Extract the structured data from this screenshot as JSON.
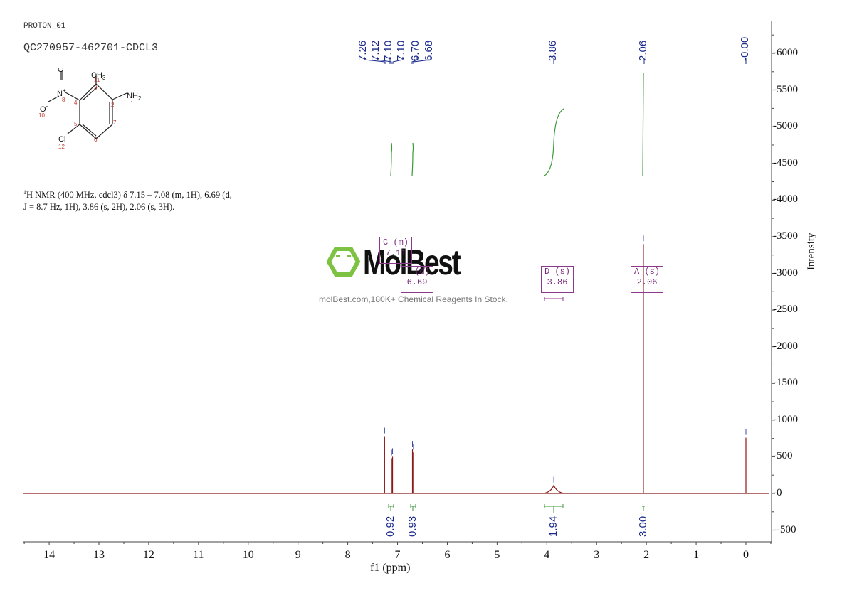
{
  "header": {
    "experiment": "PROTON_01",
    "sample_id": "QC270957-462701-CDCL3"
  },
  "structure": {
    "atoms": [
      {
        "label": "NH2",
        "num": "1"
      },
      {
        "label": "CH3",
        "num": "11"
      },
      {
        "label": "N+",
        "num": "8"
      },
      {
        "label": "O",
        "num": ""
      },
      {
        "label": "O-",
        "num": "10"
      },
      {
        "label": "Cl",
        "num": "12"
      }
    ],
    "ring_numbers": [
      "2",
      "3",
      "4",
      "5",
      "6",
      "7"
    ]
  },
  "description": {
    "sup": "1",
    "line1": "H NMR (400 MHz, cdcl3) δ 7.15 – 7.08 (m, 1H), 6.69 (d,",
    "line2": "J = 8.7 Hz, 1H), 3.86 (s, 2H), 2.06 (s, 3H)."
  },
  "watermark": {
    "brand": "MolBest",
    "tagline": "molBest.com,180K+ Chemical Reagents In Stock.",
    "logo_color": "#7dc242"
  },
  "colors": {
    "spectrum": "#8b1a1a",
    "integral": "#3a9a3a",
    "peak_label": "#1a2a8c",
    "multiplet_box": "#8b3a8b",
    "axis": "#333333"
  },
  "chart_data": {
    "type": "line",
    "title": "PROTON_01 QC270957-462701-CDCL3",
    "xlabel": "f1 (ppm)",
    "ylabel": "Intensity",
    "xlim": [
      14.5,
      -0.5
    ],
    "ylim": [
      -600,
      6400
    ],
    "x_ticks": [
      "14",
      "13",
      "12",
      "11",
      "10",
      "9",
      "8",
      "7",
      "6",
      "5",
      "4",
      "3",
      "2",
      "1",
      "0"
    ],
    "y_ticks": [
      "6000",
      "5500",
      "5000",
      "4500",
      "4000",
      "3500",
      "3000",
      "2500",
      "2000",
      "1500",
      "1000",
      "500",
      "0",
      "-500"
    ],
    "peak_labels": [
      "7.26",
      "7.12",
      "7.10",
      "7.10",
      "6.70",
      "6.68",
      "3.86",
      "2.06",
      "-0.00"
    ],
    "peaks": [
      {
        "ppm": 7.26,
        "intensity": 780
      },
      {
        "ppm": 7.12,
        "intensity": 480
      },
      {
        "ppm": 7.1,
        "intensity": 500
      },
      {
        "ppm": 6.7,
        "intensity": 600
      },
      {
        "ppm": 6.68,
        "intensity": 560
      },
      {
        "ppm": 3.86,
        "intensity": 110
      },
      {
        "ppm": 2.06,
        "intensity": 3400
      },
      {
        "ppm": 0.0,
        "intensity": 760
      }
    ],
    "integrals": [
      {
        "range": [
          7.15,
          7.08
        ],
        "value": "0.92"
      },
      {
        "range": [
          6.72,
          6.66
        ],
        "value": "0.93"
      },
      {
        "range": [
          4.0,
          3.72
        ],
        "value": "1.94"
      },
      {
        "range": [
          2.08,
          2.04
        ],
        "value": "3.00"
      }
    ],
    "multiplets": [
      {
        "id": "C",
        "type": "(m)",
        "shift": "7.11"
      },
      {
        "id": "B",
        "type": "(d)",
        "shift": "6.69"
      },
      {
        "id": "D",
        "type": "(s)",
        "shift": "3.86"
      },
      {
        "id": "A",
        "type": "(s)",
        "shift": "2.06"
      }
    ]
  }
}
